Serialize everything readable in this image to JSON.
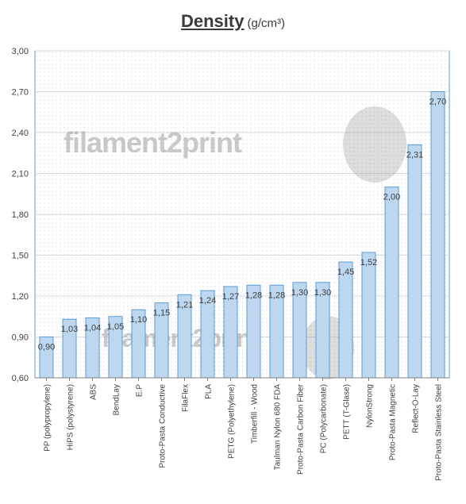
{
  "title": "Density",
  "unit": "(g/cm³)",
  "watermark": "filament2print",
  "colors": {
    "bar_fill": "#bdd7ee",
    "bar_stroke": "#5b9bd5",
    "plot_border": "#5b9bd5",
    "grid": "#d9d9d9",
    "text": "#404040"
  },
  "chart_data": {
    "type": "bar",
    "title": "Density",
    "ylabel": "",
    "xlabel": "",
    "ylim": [
      0.6,
      3.0
    ],
    "yticks": [
      "0,60",
      "0,90",
      "1,20",
      "1,50",
      "1,80",
      "2,10",
      "2,40",
      "2,70",
      "3,00"
    ],
    "grid": true,
    "categories": [
      "PP (polypropylene)",
      "HiPS (polystyrene)",
      "ABS",
      "BendLay",
      "E.P",
      "Proto-Pasta Conductive",
      "FilaFlex",
      "PLA",
      "PETG (Polyethylene)",
      "Timberfill - Wood",
      "Taulman Nylon 680 FDA",
      "Proto-Pasta Carbon Fiber",
      "PC (Polycarbonate)",
      "PETT (T-Glase)",
      "NylonStrong",
      "Proto-Pasta Magnetic",
      "Reflect-O-Lay",
      "Proto-Pasta Stainless Steel"
    ],
    "values": [
      0.9,
      1.03,
      1.04,
      1.05,
      1.1,
      1.15,
      1.21,
      1.24,
      1.27,
      1.28,
      1.28,
      1.3,
      1.3,
      1.45,
      1.52,
      2.0,
      2.31,
      2.7
    ],
    "value_labels": [
      "0,90",
      "1,03",
      "1,04",
      "1,05",
      "1,10",
      "1,15",
      "1,21",
      "1,24",
      "1,27",
      "1,28",
      "1,28",
      "1,30",
      "1,30",
      "1,45",
      "1,52",
      "2,00",
      "2,31",
      "2,70"
    ]
  }
}
